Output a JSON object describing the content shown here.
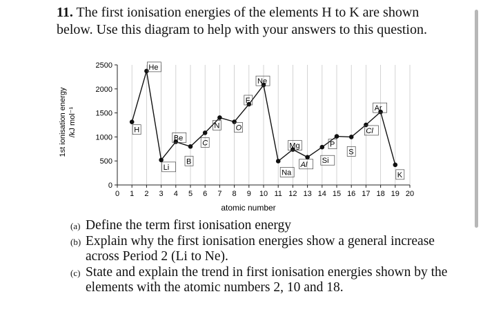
{
  "question": {
    "number": "11.",
    "text": "The first ionisation energies of the elements H to K are shown below. Use this diagram to help with your answers to this question."
  },
  "chart_data": {
    "type": "line",
    "ylabel_line1": "1st ionisation energy",
    "ylabel_line2": "/kJ mol⁻¹",
    "xlabel": "atomic number",
    "xlim": [
      0,
      20
    ],
    "ylim": [
      0,
      2500
    ],
    "yticks": [
      0,
      500,
      1000,
      1500,
      2000,
      2500
    ],
    "xticks": [
      0,
      1,
      2,
      3,
      4,
      5,
      6,
      7,
      8,
      9,
      10,
      11,
      12,
      13,
      14,
      15,
      16,
      17,
      18,
      19,
      20
    ],
    "grid": "vertical",
    "points": [
      {
        "x": 1,
        "y": 1312,
        "label": "H"
      },
      {
        "x": 2,
        "y": 2372,
        "label": "He"
      },
      {
        "x": 3,
        "y": 520,
        "label": "Li"
      },
      {
        "x": 4,
        "y": 900,
        "label": "Be"
      },
      {
        "x": 5,
        "y": 801,
        "label": "B"
      },
      {
        "x": 6,
        "y": 1086,
        "label": "C"
      },
      {
        "x": 7,
        "y": 1402,
        "label": "N"
      },
      {
        "x": 8,
        "y": 1314,
        "label": "O"
      },
      {
        "x": 9,
        "y": 1681,
        "label": "F"
      },
      {
        "x": 10,
        "y": 2081,
        "label": "Ne"
      },
      {
        "x": 11,
        "y": 496,
        "label": "Na"
      },
      {
        "x": 12,
        "y": 738,
        "label": "Mg"
      },
      {
        "x": 13,
        "y": 578,
        "label": "Al"
      },
      {
        "x": 14,
        "y": 787,
        "label": "Si"
      },
      {
        "x": 15,
        "y": 1012,
        "label": "P"
      },
      {
        "x": 16,
        "y": 1000,
        "label": "S"
      },
      {
        "x": 17,
        "y": 1251,
        "label": "Cl"
      },
      {
        "x": 18,
        "y": 1521,
        "label": "Ar"
      },
      {
        "x": 19,
        "y": 419,
        "label": "K"
      }
    ]
  },
  "parts": [
    {
      "label": "(a)",
      "text": "Define the term first ionisation energy"
    },
    {
      "label": "(b)",
      "text": "Explain why the first ionisation energies show a general increase across Period 2 (Li to Ne)."
    },
    {
      "label": "(c)",
      "text": "State and explain the trend in first ionisation energies shown by the elements with the atomic numbers 2, 10 and 18."
    }
  ]
}
